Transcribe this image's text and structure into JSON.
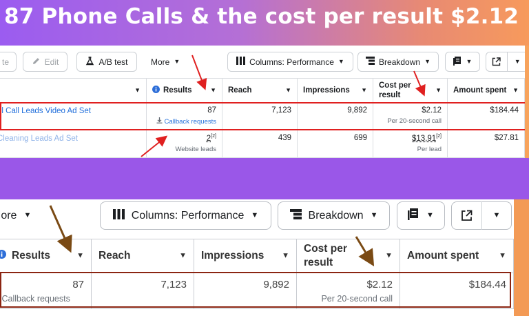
{
  "banner": {
    "title": "87 Phone Calls & the cost per result $2.12"
  },
  "toolbar": {
    "duplicate_partial": "te",
    "edit_label": "Edit",
    "ab_test_label": "A/B test",
    "more_label": "More",
    "columns_label": "Columns: Performance",
    "breakdown_label": "Breakdown"
  },
  "table": {
    "headers": {
      "results": "Results",
      "reach": "Reach",
      "impressions": "Impressions",
      "cost_per_result": "Cost per result",
      "amount_spent": "Amount spent"
    },
    "rows": [
      {
        "name": "el Call Leads Video Ad Set",
        "results": "87",
        "results_type": "Callback requests",
        "reach": "7,123",
        "impressions": "9,892",
        "cost_per_result": "$2.12",
        "cost_note": "Per 20-second call",
        "amount_spent": "$184.44"
      },
      {
        "name": "Cleaning Leads Ad Set",
        "results": "2",
        "results_footnote": "[2]",
        "results_type": "Website leads",
        "reach": "439",
        "impressions": "699",
        "cost_per_result": "$13.91",
        "cost_footnote": "[2]",
        "cost_note": "Per lead",
        "amount_spent": "$27.81"
      }
    ]
  },
  "zoom": {
    "more_label": "More",
    "columns_label": "Columns: Performance",
    "breakdown_label": "Breakdown",
    "headers": {
      "results": "Results",
      "reach": "Reach",
      "impressions": "Impressions",
      "cost_per_result": "Cost per result",
      "amount_spent": "Amount spent"
    },
    "row": {
      "results": "87",
      "results_type": "Callback requests",
      "reach": "7,123",
      "impressions": "9,892",
      "cost_per_result": "$2.12",
      "cost_note": "Per 20-second call",
      "amount_spent": "$184.44"
    }
  },
  "colors": {
    "banner_start": "#9b5cf0",
    "banner_end": "#f79a5c",
    "band": "#9a57e8",
    "highlight_red": "#e02020",
    "highlight_dark": "#8b2512",
    "arrow_brown": "#7a4a14",
    "link_blue": "#216fdb"
  },
  "icons": {
    "edit": "pencil-icon",
    "ab_test": "flask-icon",
    "columns": "columns-icon",
    "breakdown": "breakdown-icon",
    "reports": "reports-icon",
    "export": "export-icon",
    "info": "info-icon",
    "download": "download-icon"
  }
}
